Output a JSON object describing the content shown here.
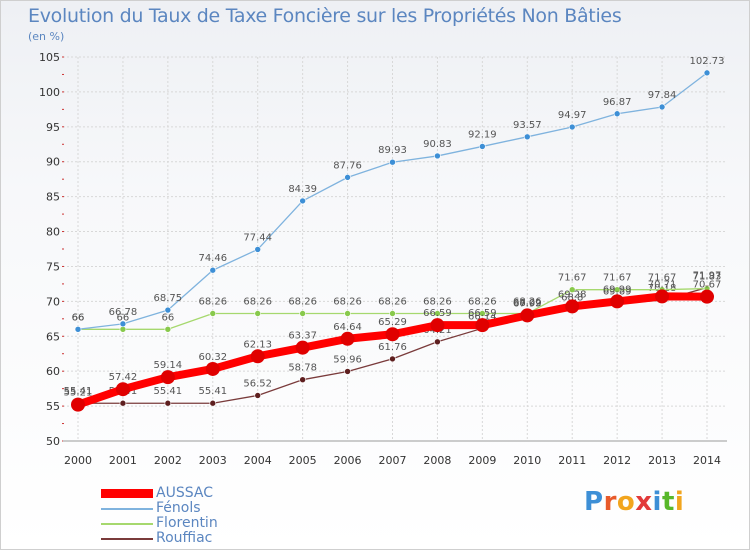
{
  "page": {
    "title": "Evolution du Taux de Taxe Foncière sur les Propriétés Non Bâties",
    "unit": "(en %)"
  },
  "brand": {
    "letters": [
      "P",
      "r",
      "o",
      "x",
      "i",
      "t",
      "i"
    ],
    "colors": [
      "#3d8fd6",
      "#e85a2a",
      "#f2a51e",
      "#e23a3a",
      "#3d8fd6",
      "#59b82a",
      "#f2a51e"
    ]
  },
  "chart_data": {
    "type": "line",
    "title": "Evolution du Taux de Taxe Foncière sur les Propriétés Non Bâties",
    "subtitle": "(en %)",
    "xlabel": "",
    "ylabel": "",
    "x": [
      "2000",
      "2001",
      "2002",
      "2003",
      "2004",
      "2005",
      "2006",
      "2007",
      "2008",
      "2009",
      "2010",
      "2011",
      "2012",
      "2013",
      "2014"
    ],
    "ylim": [
      50,
      105
    ],
    "yticks": [
      50,
      55,
      60,
      65,
      70,
      75,
      80,
      85,
      90,
      95,
      100,
      105
    ],
    "grid": true,
    "legend_position": "bottom-left",
    "series": [
      {
        "name": "Rouffiac",
        "color": "#7a3b3b",
        "marker": "#5e1f1f",
        "values": [
          55.41,
          55.41,
          55.41,
          55.41,
          56.52,
          58.78,
          59.96,
          61.76,
          64.21,
          66.14,
          68.02,
          68.8,
          69.69,
          70.18,
          71.97
        ],
        "labels": [
          "55.41",
          "55.41",
          "55.41",
          "55.41",
          "56.52",
          "58.78",
          "59.96",
          "61.76",
          "64.21",
          "66.14",
          "68.02",
          "68.8",
          "69.69",
          "70.18",
          "71.97"
        ]
      },
      {
        "name": "Florentin",
        "color": "#a6d86e",
        "marker": "#88c94c",
        "values": [
          66,
          66,
          66,
          68.26,
          68.26,
          68.26,
          68.26,
          68.26,
          68.26,
          68.26,
          68.26,
          71.67,
          71.67,
          71.67,
          71.83
        ],
        "labels": [
          "66",
          "66",
          "66",
          "68.26",
          "68.26",
          "68.26",
          "68.26",
          "68.26",
          "68.26",
          "68.26",
          "68.26",
          "71.67",
          "71.67",
          "71.67",
          "71.83"
        ]
      },
      {
        "name": "Fénols",
        "color": "#7fb3de",
        "marker": "#3d8fd6",
        "values": [
          66,
          66.78,
          68.75,
          74.46,
          77.44,
          84.39,
          87.76,
          89.93,
          90.83,
          92.19,
          93.57,
          94.97,
          96.87,
          97.84,
          102.73
        ],
        "labels": [
          "66",
          "66.78",
          "68.75",
          "74.46",
          "77.44",
          "84.39",
          "87.76",
          "89.93",
          "90.83",
          "92.19",
          "93.57",
          "94.97",
          "96.87",
          "97.84",
          "102.73"
        ]
      },
      {
        "name": "AUSSAC",
        "color": "#ff0000",
        "marker": "#e00000",
        "values": [
          55.21,
          57.42,
          59.14,
          60.32,
          62.13,
          63.37,
          64.64,
          65.29,
          66.59,
          66.59,
          67.99,
          69.28,
          69.99,
          70.71,
          70.67
        ],
        "labels": [
          "55.21",
          "57.42",
          "59.14",
          "60.32",
          "62.13",
          "63.37",
          "64.64",
          "65.29",
          "66.59",
          "66.59",
          "67.99",
          "69.28",
          "69.99",
          "70.71",
          "70.67"
        ]
      }
    ],
    "legend_order": [
      "AUSSAC",
      "Fénols",
      "Florentin",
      "Rouffiac"
    ]
  }
}
